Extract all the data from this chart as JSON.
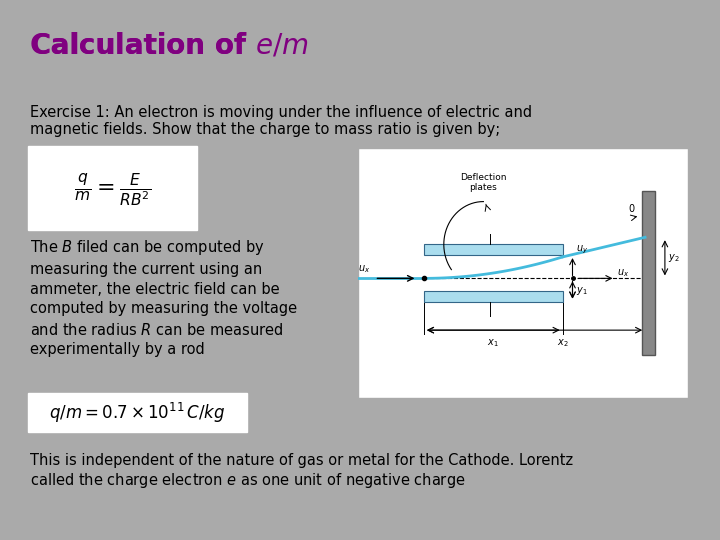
{
  "background_color": "#aaaaaa",
  "title": "Calculation of e/m",
  "title_color": "#800080",
  "title_fontsize": 20,
  "exercise_text": "Exercise 1: An electron is moving under the influence of electric and\nmagnetic fields. Show that the charge to mass ratio is given by;",
  "exercise_fontsize": 10.5,
  "formula1_text": "$\\frac{q}{m} = \\frac{E}{RB^2}$",
  "body_text": "The $B$ filed can be computed by\nmeasuring the current using an\nammeter, the electric field can be\ncomputed by measuring the voltage\nand the radius $R$ can be measured\nexperimentally by a rod",
  "formula2_text": "$q / m = 0.7 \\times 10^{11}\\, C / kg$",
  "footer_text": "This is independent of the nature of gas or metal for the Cathode. Lorentz\ncalled the charge electron $e$ as one unit of negative charge",
  "text_fontsize": 10.5,
  "formula_fontsize": 16,
  "formula2_fontsize": 12
}
